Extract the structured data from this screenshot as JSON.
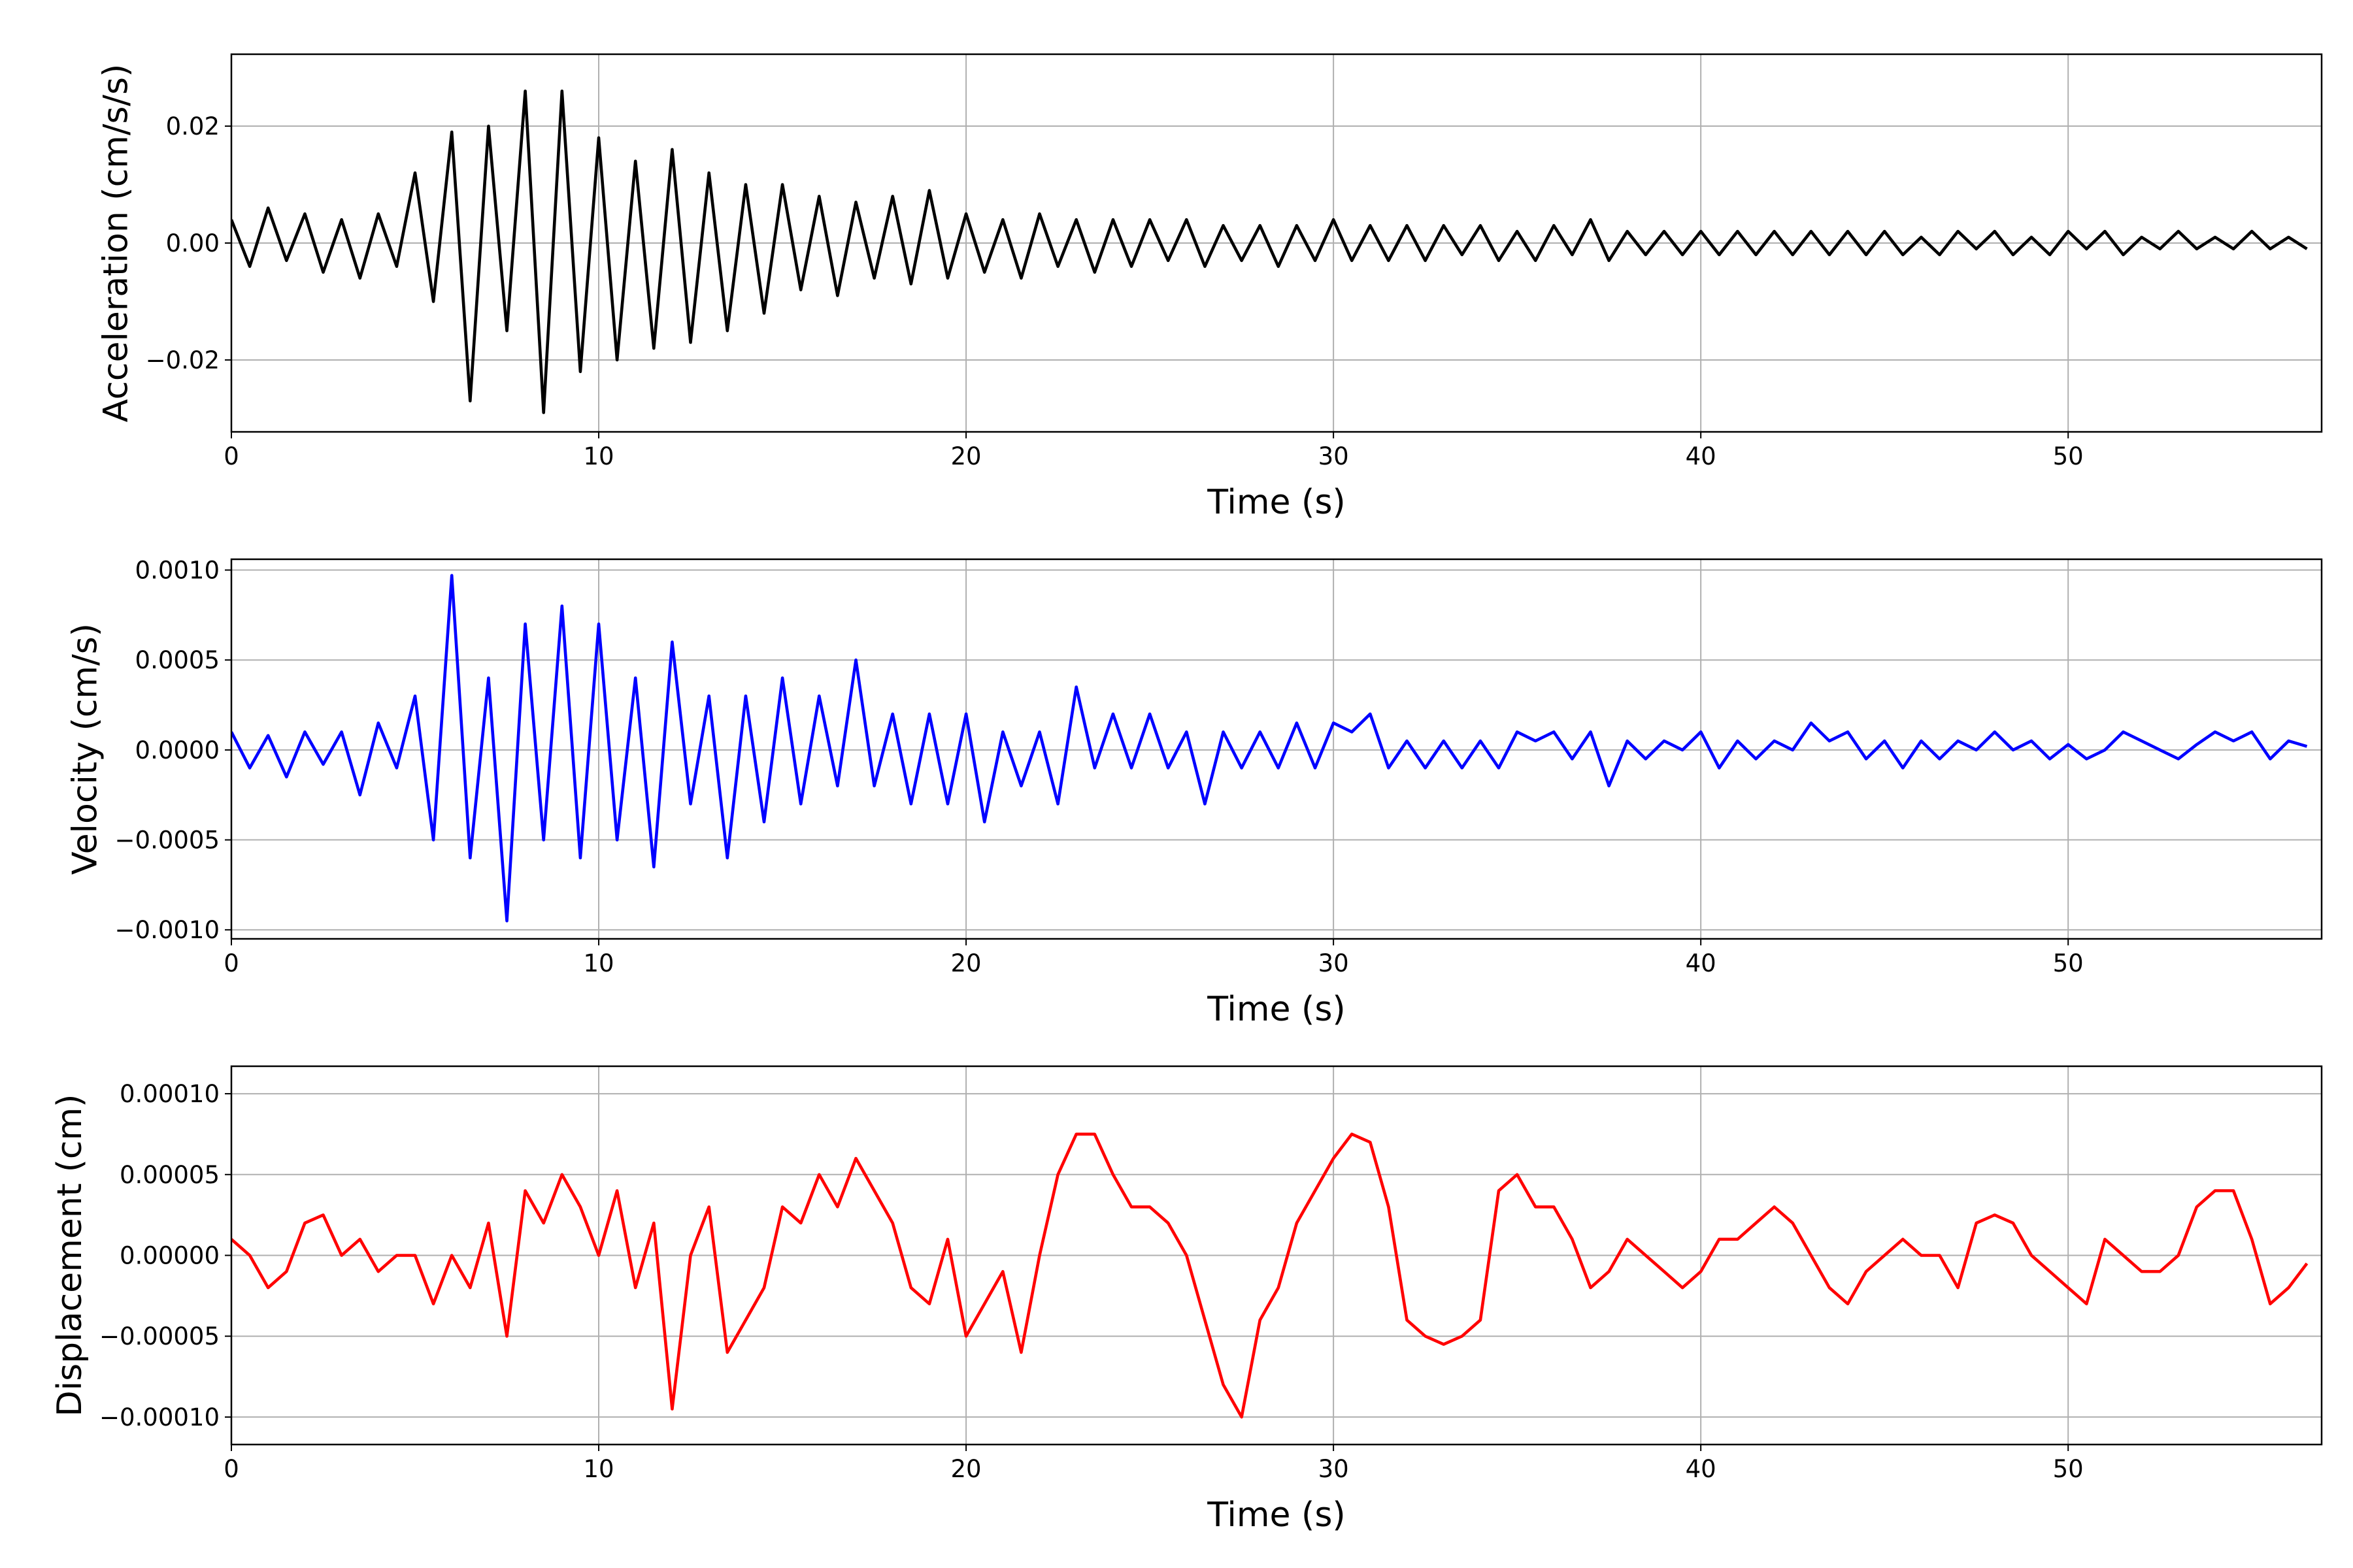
{
  "chart_data": [
    {
      "type": "line",
      "xlabel": "Time (s)",
      "ylabel": "Acceleration (cm/s/s)",
      "xlim": [
        0,
        56.9
      ],
      "ylim": [
        -0.0323,
        0.0323
      ],
      "xticks": [
        0,
        10,
        20,
        30,
        40,
        50
      ],
      "yticks": [
        {
          "value": -0.02,
          "label": "−0.02"
        },
        {
          "value": 0,
          "label": "0.00"
        },
        {
          "value": 0.02,
          "label": "0.02"
        }
      ],
      "grid": true,
      "color": "#000000",
      "x": [
        0,
        0.5,
        1,
        1.5,
        2,
        2.5,
        3,
        3.5,
        4,
        4.5,
        5,
        5.5,
        6,
        6.5,
        7,
        7.5,
        8,
        8.5,
        9,
        9.5,
        10,
        10.5,
        11,
        11.5,
        12,
        12.5,
        13,
        13.5,
        14,
        14.5,
        15,
        15.5,
        16,
        16.5,
        17,
        17.5,
        18,
        18.5,
        19,
        19.5,
        20,
        20.5,
        21,
        21.5,
        22,
        22.5,
        23,
        23.5,
        24,
        24.5,
        25,
        25.5,
        26,
        26.5,
        27,
        27.5,
        28,
        28.5,
        29,
        29.5,
        30,
        30.5,
        31,
        31.5,
        32,
        32.5,
        33,
        33.5,
        34,
        34.5,
        35,
        35.5,
        36,
        36.5,
        37,
        37.5,
        38,
        38.5,
        39,
        39.5,
        40,
        40.5,
        41,
        41.5,
        42,
        42.5,
        43,
        43.5,
        44,
        44.5,
        45,
        45.5,
        46,
        46.5,
        47,
        47.5,
        48,
        48.5,
        49,
        49.5,
        50,
        50.5,
        51,
        51.5,
        52,
        52.5,
        53,
        53.5,
        54,
        54.5,
        55,
        55.5,
        56,
        56.5
      ],
      "values": [
        0.004,
        -0.004,
        0.006,
        -0.003,
        0.005,
        -0.005,
        0.004,
        -0.006,
        0.005,
        -0.004,
        0.012,
        -0.01,
        0.019,
        -0.027,
        0.02,
        -0.015,
        0.026,
        -0.029,
        0.026,
        -0.022,
        0.018,
        -0.02,
        0.014,
        -0.018,
        0.016,
        -0.017,
        0.012,
        -0.015,
        0.01,
        -0.012,
        0.01,
        -0.008,
        0.008,
        -0.009,
        0.007,
        -0.006,
        0.008,
        -0.007,
        0.009,
        -0.006,
        0.005,
        -0.005,
        0.004,
        -0.006,
        0.005,
        -0.004,
        0.004,
        -0.005,
        0.004,
        -0.004,
        0.004,
        -0.003,
        0.004,
        -0.004,
        0.003,
        -0.003,
        0.003,
        -0.004,
        0.003,
        -0.003,
        0.004,
        -0.003,
        0.003,
        -0.003,
        0.003,
        -0.003,
        0.003,
        -0.002,
        0.003,
        -0.003,
        0.002,
        -0.003,
        0.003,
        -0.002,
        0.004,
        -0.003,
        0.002,
        -0.002,
        0.002,
        -0.002,
        0.002,
        -0.002,
        0.002,
        -0.002,
        0.002,
        -0.002,
        0.002,
        -0.002,
        0.002,
        -0.002,
        0.002,
        -0.002,
        0.001,
        -0.002,
        0.002,
        -0.001,
        0.002,
        -0.002,
        0.001,
        -0.002,
        0.002,
        -0.001,
        0.002,
        -0.002,
        0.001,
        -0.001,
        0.002,
        -0.001,
        0.001,
        -0.001,
        0.002,
        -0.001,
        0.001,
        -0.001
      ]
    },
    {
      "type": "line",
      "xlabel": "Time (s)",
      "ylabel": "Velocity (cm/s)",
      "xlim": [
        0,
        56.9
      ],
      "ylim": [
        -0.00105,
        0.00106
      ],
      "xticks": [
        0,
        10,
        20,
        30,
        40,
        50
      ],
      "yticks": [
        {
          "value": -0.001,
          "label": "−0.0010"
        },
        {
          "value": -0.0005,
          "label": "−0.0005"
        },
        {
          "value": 0,
          "label": "0.0000"
        },
        {
          "value": 0.0005,
          "label": "0.0005"
        },
        {
          "value": 0.001,
          "label": "0.0010"
        }
      ],
      "grid": true,
      "color": "#0000ff",
      "x": [
        0,
        0.5,
        1,
        1.5,
        2,
        2.5,
        3,
        3.5,
        4,
        4.5,
        5,
        5.5,
        6,
        6.5,
        7,
        7.5,
        8,
        8.5,
        9,
        9.5,
        10,
        10.5,
        11,
        11.5,
        12,
        12.5,
        13,
        13.5,
        14,
        14.5,
        15,
        15.5,
        16,
        16.5,
        17,
        17.5,
        18,
        18.5,
        19,
        19.5,
        20,
        20.5,
        21,
        21.5,
        22,
        22.5,
        23,
        23.5,
        24,
        24.5,
        25,
        25.5,
        26,
        26.5,
        27,
        27.5,
        28,
        28.5,
        29,
        29.5,
        30,
        30.5,
        31,
        31.5,
        32,
        32.5,
        33,
        33.5,
        34,
        34.5,
        35,
        35.5,
        36,
        36.5,
        37,
        37.5,
        38,
        38.5,
        39,
        39.5,
        40,
        40.5,
        41,
        41.5,
        42,
        42.5,
        43,
        43.5,
        44,
        44.5,
        45,
        45.5,
        46,
        46.5,
        47,
        47.5,
        48,
        48.5,
        49,
        49.5,
        50,
        50.5,
        51,
        51.5,
        52,
        52.5,
        53,
        53.5,
        54,
        54.5,
        55,
        55.5,
        56,
        56.5
      ],
      "values": [
        0.0001,
        -0.0001,
        8e-05,
        -0.00015,
        0.0001,
        -8e-05,
        0.0001,
        -0.00025,
        0.00015,
        -0.0001,
        0.0003,
        -0.0005,
        0.00097,
        -0.0006,
        0.0004,
        -0.00095,
        0.0007,
        -0.0005,
        0.0008,
        -0.0006,
        0.0007,
        -0.0005,
        0.0004,
        -0.00065,
        0.0006,
        -0.0003,
        0.0003,
        -0.0006,
        0.0003,
        -0.0004,
        0.0004,
        -0.0003,
        0.0003,
        -0.0002,
        0.0005,
        -0.0002,
        0.0002,
        -0.0003,
        0.0002,
        -0.0003,
        0.0002,
        -0.0004,
        0.0001,
        -0.0002,
        0.0001,
        -0.0003,
        0.00035,
        -0.0001,
        0.0002,
        -0.0001,
        0.0002,
        -0.0001,
        0.0001,
        -0.0003,
        0.0001,
        -0.0001,
        0.0001,
        -0.0001,
        0.00015,
        -0.0001,
        0.00015,
        0.0001,
        0.0002,
        -0.0001,
        5e-05,
        -0.0001,
        5e-05,
        -0.0001,
        5e-05,
        -0.0001,
        0.0001,
        5e-05,
        0.0001,
        -5e-05,
        0.0001,
        -0.0002,
        5e-05,
        -5e-05,
        5e-05,
        0,
        0.0001,
        -0.0001,
        5e-05,
        -5e-05,
        5e-05,
        0,
        0.00015,
        5e-05,
        0.0001,
        -5e-05,
        5e-05,
        -0.0001,
        5e-05,
        -5e-05,
        5e-05,
        0,
        0.0001,
        0,
        5e-05,
        -5e-05,
        3e-05,
        -5e-05,
        0,
        0.0001,
        5e-05,
        0,
        -5e-05,
        3e-05,
        0.0001,
        5e-05,
        0.0001,
        -5e-05,
        5e-05,
        2e-05
      ]
    },
    {
      "type": "line",
      "xlabel": "Time (s)",
      "ylabel": "Displacement (cm)",
      "xlim": [
        0,
        56.9
      ],
      "ylim": [
        -0.000117,
        0.000117
      ],
      "xticks": [
        0,
        10,
        20,
        30,
        40,
        50
      ],
      "yticks": [
        {
          "value": -0.0001,
          "label": "−0.00010"
        },
        {
          "value": -5e-05,
          "label": "−0.00005"
        },
        {
          "value": 0,
          "label": "0.00000"
        },
        {
          "value": 5e-05,
          "label": "0.00005"
        },
        {
          "value": 0.0001,
          "label": "0.00010"
        }
      ],
      "grid": true,
      "color": "#ff0000",
      "x": [
        0,
        0.5,
        1,
        1.5,
        2,
        2.5,
        3,
        3.5,
        4,
        4.5,
        5,
        5.5,
        6,
        6.5,
        7,
        7.5,
        8,
        8.5,
        9,
        9.5,
        10,
        10.5,
        11,
        11.5,
        12,
        12.5,
        13,
        13.5,
        14,
        14.5,
        15,
        15.5,
        16,
        16.5,
        17,
        17.5,
        18,
        18.5,
        19,
        19.5,
        20,
        20.5,
        21,
        21.5,
        22,
        22.5,
        23,
        23.5,
        24,
        24.5,
        25,
        25.5,
        26,
        26.5,
        27,
        27.5,
        28,
        28.5,
        29,
        29.5,
        30,
        30.5,
        31,
        31.5,
        32,
        32.5,
        33,
        33.5,
        34,
        34.5,
        35,
        35.5,
        36,
        36.5,
        37,
        37.5,
        38,
        38.5,
        39,
        39.5,
        40,
        40.5,
        41,
        41.5,
        42,
        42.5,
        43,
        43.5,
        44,
        44.5,
        45,
        45.5,
        46,
        46.5,
        47,
        47.5,
        48,
        48.5,
        49,
        49.5,
        50,
        50.5,
        51,
        51.5,
        52,
        52.5,
        53,
        53.5,
        54,
        54.5,
        55,
        55.5,
        56,
        56.5
      ],
      "values": [
        1e-05,
        0,
        -2e-05,
        -1e-05,
        2e-05,
        2.5e-05,
        0,
        1e-05,
        -1e-05,
        0,
        0,
        -3e-05,
        0,
        -2e-05,
        2e-05,
        -5e-05,
        4e-05,
        2e-05,
        5e-05,
        3e-05,
        0,
        4e-05,
        -2e-05,
        2e-05,
        -9.5e-05,
        0,
        3e-05,
        -6e-05,
        -4e-05,
        -2e-05,
        3e-05,
        2e-05,
        5e-05,
        3e-05,
        6e-05,
        4e-05,
        2e-05,
        -2e-05,
        -3e-05,
        1e-05,
        -5e-05,
        -3e-05,
        -1e-05,
        -6e-05,
        0,
        5e-05,
        7.5e-05,
        7.5e-05,
        5e-05,
        3e-05,
        3e-05,
        2e-05,
        0,
        -4e-05,
        -8e-05,
        -0.0001,
        -4e-05,
        -2e-05,
        2e-05,
        4e-05,
        6e-05,
        7.5e-05,
        7e-05,
        3e-05,
        -4e-05,
        -5e-05,
        -5.5e-05,
        -5e-05,
        -4e-05,
        4e-05,
        5e-05,
        3e-05,
        3e-05,
        1e-05,
        -2e-05,
        -1e-05,
        1e-05,
        0,
        -1e-05,
        -2e-05,
        -1e-05,
        1e-05,
        1e-05,
        2e-05,
        3e-05,
        2e-05,
        0,
        -2e-05,
        -3e-05,
        -1e-05,
        0,
        1e-05,
        0,
        0,
        -2e-05,
        2e-05,
        2.5e-05,
        2e-05,
        0,
        -1e-05,
        -2e-05,
        -3e-05,
        1e-05,
        0,
        -1e-05,
        -1e-05,
        0,
        3e-05,
        4e-05,
        4e-05,
        1e-05,
        -3e-05,
        -2e-05,
        -5e-06
      ]
    }
  ]
}
